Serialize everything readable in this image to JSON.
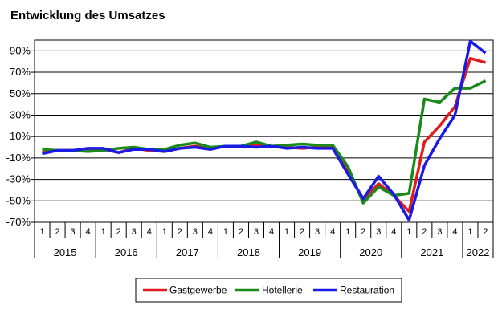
{
  "chart_data": {
    "type": "line",
    "title": "Entwicklung des Umsatzes",
    "xlabel": "",
    "ylabel": "",
    "ylim": [
      -70,
      100
    ],
    "yticks": [
      "90%",
      "70%",
      "50%",
      "30%",
      "10%",
      "-10%",
      "-30%",
      "-50%",
      "-70%"
    ],
    "ytick_values": [
      90,
      70,
      50,
      30,
      10,
      -10,
      -30,
      -50,
      -70
    ],
    "quarters": [
      "1",
      "2",
      "3",
      "4",
      "1",
      "2",
      "3",
      "4",
      "1",
      "2",
      "3",
      "4",
      "1",
      "2",
      "3",
      "4",
      "1",
      "2",
      "3",
      "4",
      "1",
      "2",
      "3",
      "4",
      "1",
      "2",
      "3",
      "4",
      "1",
      "2"
    ],
    "years": [
      {
        "label": "2015",
        "quarters": 4
      },
      {
        "label": "2016",
        "quarters": 4
      },
      {
        "label": "2017",
        "quarters": 4
      },
      {
        "label": "2018",
        "quarters": 4
      },
      {
        "label": "2019",
        "quarters": 4
      },
      {
        "label": "2020",
        "quarters": 4
      },
      {
        "label": "2021",
        "quarters": 4
      },
      {
        "label": "2022",
        "quarters": 2
      }
    ],
    "grid": true,
    "legend_position": "bottom",
    "series": [
      {
        "name": "Gastgewerbe",
        "color": "#e21b1b",
        "values": [
          -4,
          -3,
          -3,
          -2,
          -2,
          -5,
          -1,
          -3,
          -4,
          -1,
          1,
          -1,
          1,
          1,
          2,
          1,
          0,
          -1,
          0,
          0,
          -23,
          -49,
          -34,
          -45,
          -60,
          5,
          20,
          38,
          83,
          79
        ]
      },
      {
        "name": "Hotellerie",
        "color": "#1a8a1a",
        "values": [
          -2,
          -3,
          -3,
          -4,
          -3,
          -1,
          0,
          -2,
          -2,
          2,
          4,
          0,
          1,
          1,
          5,
          1,
          2,
          3,
          2,
          2,
          -18,
          -52,
          -37,
          -45,
          -43,
          45,
          42,
          55,
          55,
          62
        ]
      },
      {
        "name": "Restauration",
        "color": "#1a1ae6",
        "values": [
          -6,
          -3,
          -3,
          -1,
          -1,
          -5,
          -2,
          -2,
          -4,
          -1,
          0,
          -2,
          1,
          1,
          0,
          1,
          -1,
          0,
          -1,
          -1,
          -25,
          -48,
          -27,
          -44,
          -68,
          -17,
          8,
          30,
          99,
          88
        ]
      }
    ]
  }
}
